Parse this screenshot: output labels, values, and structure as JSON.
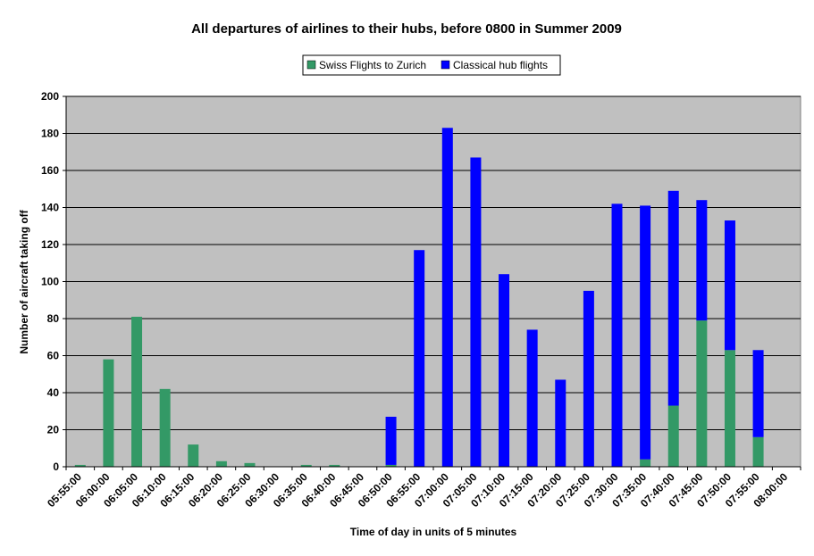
{
  "chart_data": {
    "type": "bar",
    "stacked": true,
    "title": "All departures of airlines to their hubs, before 0800 in Summer 2009",
    "xlabel": "Time of day in units of 5 minutes",
    "ylabel": "Number of aircraft taking off",
    "ylim": [
      0,
      200
    ],
    "yticks": [
      0,
      20,
      40,
      60,
      80,
      100,
      120,
      140,
      160,
      180,
      200
    ],
    "grid": true,
    "legend_position": "top-center",
    "plot_background": "#C0C0C0",
    "categories": [
      "05:55:00",
      "06:00:00",
      "06:05:00",
      "06:10:00",
      "06:15:00",
      "06:20:00",
      "06:25:00",
      "06:30:00",
      "06:35:00",
      "06:40:00",
      "06:45:00",
      "06:50:00",
      "06:55:00",
      "07:00:00",
      "07:05:00",
      "07:10:00",
      "07:15:00",
      "07:20:00",
      "07:25:00",
      "07:30:00",
      "07:35:00",
      "07:40:00",
      "07:45:00",
      "07:50:00",
      "07:55:00",
      "08:00:00"
    ],
    "series": [
      {
        "name": "Swiss Flights to Zurich",
        "color": "#339966",
        "values": [
          1,
          58,
          81,
          42,
          12,
          3,
          2,
          0,
          1,
          1,
          0,
          1,
          0,
          0,
          0,
          0,
          0,
          0,
          0,
          0,
          4,
          33,
          79,
          63,
          16,
          0
        ]
      },
      {
        "name": "Classical hub flights",
        "color": "#0000FF",
        "values": [
          0,
          0,
          0,
          0,
          0,
          0,
          0,
          0,
          0,
          0,
          0,
          26,
          117,
          183,
          167,
          104,
          74,
          47,
          95,
          142,
          137,
          116,
          65,
          70,
          47,
          0
        ]
      }
    ]
  }
}
